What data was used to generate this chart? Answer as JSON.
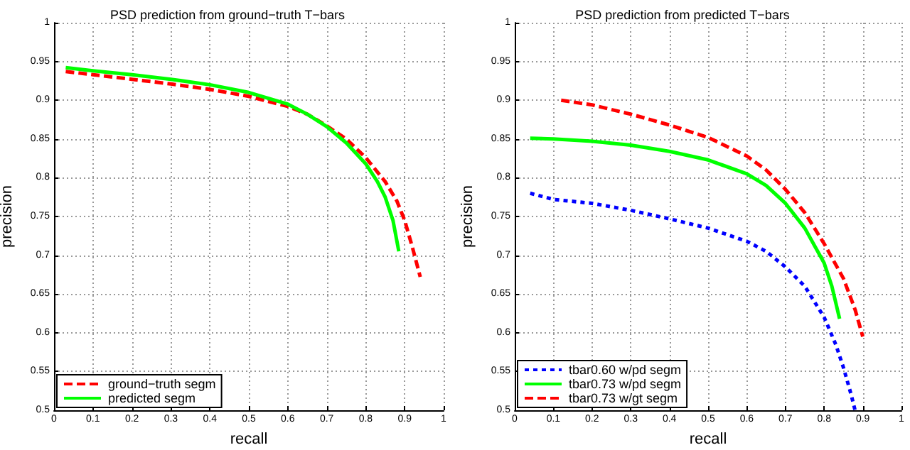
{
  "chart_data": [
    {
      "type": "line",
      "title": "PSD prediction from ground−truth T−bars",
      "xlabel": "recall",
      "ylabel": "precision",
      "xlim": [
        0,
        1
      ],
      "ylim": [
        0.5,
        1
      ],
      "xticks": [
        0,
        0.1,
        0.2,
        0.3,
        0.4,
        0.5,
        0.6,
        0.7,
        0.8,
        0.9,
        1
      ],
      "yticks": [
        0.5,
        0.55,
        0.6,
        0.65,
        0.7,
        0.75,
        0.8,
        0.85,
        0.9,
        0.95,
        1
      ],
      "grid": true,
      "legend": "bottom left",
      "marker": "none",
      "series": [
        {
          "name": "ground−truth segm",
          "color": "#ff0000",
          "line_style": "dashed",
          "x": [
            0.03,
            0.1,
            0.2,
            0.3,
            0.4,
            0.5,
            0.6,
            0.65,
            0.7,
            0.75,
            0.8,
            0.85,
            0.88,
            0.9,
            0.92,
            0.94
          ],
          "values": [
            0.937,
            0.933,
            0.927,
            0.921,
            0.914,
            0.905,
            0.892,
            0.882,
            0.867,
            0.85,
            0.826,
            0.795,
            0.77,
            0.745,
            0.71,
            0.672
          ]
        },
        {
          "name": "predicted segm",
          "color": "#00ff00",
          "line_style": "solid",
          "x": [
            0.03,
            0.1,
            0.2,
            0.3,
            0.4,
            0.5,
            0.6,
            0.65,
            0.7,
            0.75,
            0.8,
            0.83,
            0.85,
            0.87,
            0.885
          ],
          "values": [
            0.942,
            0.938,
            0.933,
            0.927,
            0.92,
            0.91,
            0.895,
            0.882,
            0.866,
            0.845,
            0.818,
            0.795,
            0.775,
            0.745,
            0.705
          ]
        }
      ]
    },
    {
      "type": "line",
      "title": "PSD prediction from predicted T−bars",
      "xlabel": "recall",
      "ylabel": "precision",
      "xlim": [
        0,
        1
      ],
      "ylim": [
        0.5,
        1
      ],
      "xticks": [
        0,
        0.1,
        0.2,
        0.3,
        0.4,
        0.5,
        0.6,
        0.7,
        0.8,
        0.9,
        1
      ],
      "yticks": [
        0.5,
        0.55,
        0.6,
        0.65,
        0.7,
        0.75,
        0.8,
        0.85,
        0.9,
        0.95,
        1
      ],
      "grid": true,
      "legend": "bottom left",
      "marker": "none",
      "series": [
        {
          "name": "tbar0.60 w/pd segm",
          "color": "#0000ff",
          "line_style": "dotted",
          "x": [
            0.04,
            0.1,
            0.2,
            0.3,
            0.4,
            0.5,
            0.6,
            0.65,
            0.7,
            0.75,
            0.8,
            0.83,
            0.85,
            0.87,
            0.88
          ],
          "values": [
            0.78,
            0.772,
            0.767,
            0.758,
            0.747,
            0.735,
            0.718,
            0.705,
            0.685,
            0.66,
            0.62,
            0.585,
            0.555,
            0.52,
            0.5
          ]
        },
        {
          "name": "tbar0.73 w/pd segm",
          "color": "#00ff00",
          "line_style": "solid",
          "x": [
            0.04,
            0.1,
            0.2,
            0.3,
            0.4,
            0.5,
            0.6,
            0.65,
            0.7,
            0.75,
            0.8,
            0.82,
            0.84
          ],
          "values": [
            0.851,
            0.85,
            0.847,
            0.842,
            0.834,
            0.823,
            0.805,
            0.79,
            0.767,
            0.735,
            0.69,
            0.66,
            0.618
          ]
        },
        {
          "name": "tbar0.73 w/gt segm",
          "color": "#ff0000",
          "line_style": "dashed",
          "x": [
            0.12,
            0.2,
            0.3,
            0.4,
            0.5,
            0.6,
            0.65,
            0.7,
            0.75,
            0.8,
            0.85,
            0.88,
            0.9
          ],
          "values": [
            0.9,
            0.894,
            0.882,
            0.868,
            0.852,
            0.828,
            0.81,
            0.785,
            0.755,
            0.715,
            0.67,
            0.63,
            0.595
          ]
        }
      ]
    }
  ]
}
